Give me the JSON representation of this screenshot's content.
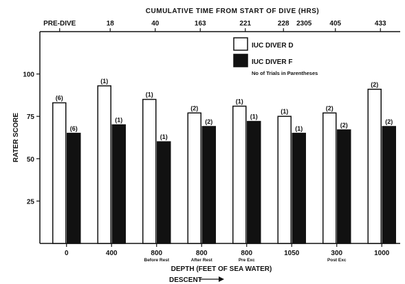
{
  "chart_data": {
    "type": "bar",
    "top_axis_title": "CUMULATIVE TIME FROM START OF DIVE (HRS)",
    "top_ticks": [
      "PRE-DIVE",
      "18",
      "40",
      "163",
      "221",
      "228",
      "2305",
      "405",
      "433"
    ],
    "ylabel": "RATER SCORE",
    "y_ticks": [
      25,
      50,
      75,
      100
    ],
    "ylim": [
      0,
      125
    ],
    "xlabel": "DEPTH (FEET OF SEA WATER)",
    "xlabel2": "DESCENT",
    "categories": [
      "0",
      "400",
      "800",
      "800",
      "800",
      "1050",
      "300",
      "1000"
    ],
    "subcategories": [
      "",
      "",
      "Before Rest",
      "After Rest",
      "Pre Exc",
      "",
      "Post Exc",
      ""
    ],
    "series": [
      {
        "name": "IUC DIVER D",
        "color": "#ffffff",
        "values": [
          83,
          93,
          85,
          77,
          81,
          75,
          77,
          91
        ],
        "trials": [
          "(6)",
          "(1)",
          "(1)",
          "(2)",
          "(1)",
          "(1)",
          "(2)",
          "(2)"
        ]
      },
      {
        "name": "IUC DIVER F",
        "color": "#111111",
        "values": [
          65,
          70,
          60,
          69,
          72,
          65,
          67,
          69
        ],
        "trials": [
          "(6)",
          "(1)",
          "(1)",
          "(2)",
          "(1)",
          "(1)",
          "(2)",
          "(2)"
        ]
      }
    ],
    "legend_note": "No of Trials in Parentheses",
    "legend_position": "top-right"
  }
}
